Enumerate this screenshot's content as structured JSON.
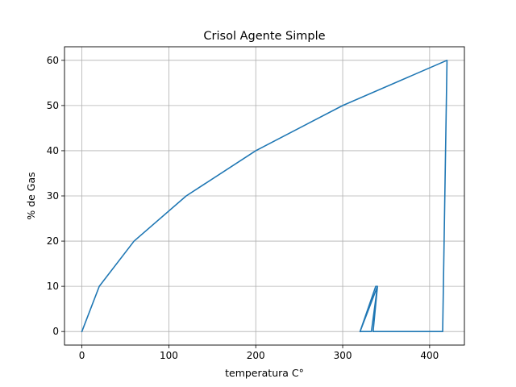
{
  "chart_data": {
    "type": "line",
    "title": "Crisol Agente Simple",
    "xlabel": "temperatura C°",
    "ylabel": "% de Gas",
    "xlim": [
      -20,
      440
    ],
    "ylim": [
      -3,
      63
    ],
    "xticks": [
      0,
      100,
      200,
      300,
      400
    ],
    "yticks": [
      0,
      10,
      20,
      30,
      40,
      50,
      60
    ],
    "grid": true,
    "series": [
      {
        "color": "#1f77b4",
        "points": [
          [
            0,
            0
          ],
          [
            20,
            10
          ],
          [
            60,
            20
          ],
          [
            120,
            30
          ],
          [
            200,
            40
          ],
          [
            300,
            50
          ],
          [
            420,
            60
          ],
          [
            415,
            0
          ],
          [
            335,
            0
          ],
          [
            340,
            10
          ],
          [
            320,
            0
          ],
          [
            333,
            0
          ],
          [
            340,
            10
          ],
          [
            338,
            10
          ],
          [
            320,
            0
          ]
        ]
      }
    ]
  }
}
